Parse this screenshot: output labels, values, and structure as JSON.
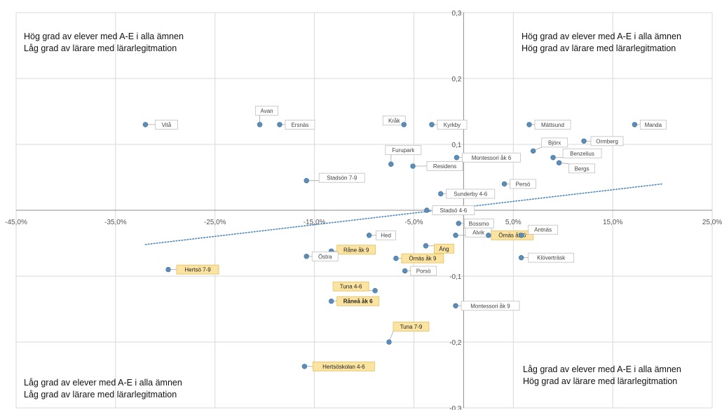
{
  "quadrants": {
    "top_left": [
      "Hög grad av elever med A-E i alla ämnen",
      "Låg grad av lärare med lärarlegitmation"
    ],
    "top_right": [
      "Hög grad av elever med A-E i alla ämnen",
      "Hög grad av lärare med lärarlegitmation"
    ],
    "bottom_left": [
      "Låg grad av elever med A-E i alla ämnen",
      "Låg grad av lärare med lärarlegitmation"
    ],
    "bottom_right": [
      "Låg grad av elever med A-E i alla ämnen",
      "Hög grad av lärare med lärarlegitmation"
    ]
  },
  "colors": {
    "point": "#5b8db8",
    "trendline": "#4a86c0",
    "grid": "#d9d9d9",
    "axis": "#8c8c8c",
    "label_border": "#bfbfbf",
    "highlight_fill": "#fbe3a1",
    "highlight_border": "#e0c060"
  },
  "chart_data": {
    "type": "scatter",
    "xlim": [
      -0.45,
      0.25
    ],
    "ylim": [
      -0.3,
      0.3
    ],
    "x_tick_values": [
      -0.45,
      -0.35,
      -0.25,
      -0.15,
      -0.05,
      0.05,
      0.15,
      0.25
    ],
    "x_tick_labels": [
      "-45,0%",
      "-35,0%",
      "-25,0%",
      "-15,0%",
      "-5,0%",
      "5,0%",
      "15,0%",
      "25,0%"
    ],
    "y_tick_values": [
      0.3,
      0.2,
      0.1,
      -0.1,
      -0.2,
      -0.3
    ],
    "y_tick_labels": [
      "0,3",
      "0,2",
      "0,1",
      "-0,1",
      "-0,2",
      "-0,3"
    ],
    "grid": true,
    "trendline": {
      "style": "dotted",
      "from": [
        -0.32,
        -0.052
      ],
      "to": [
        0.2,
        0.04
      ]
    },
    "points": [
      {
        "label": "Vitå",
        "x": -0.32,
        "y": 0.13
      },
      {
        "label": "Avan",
        "x": -0.205,
        "y": 0.13
      },
      {
        "label": "Ersnäs",
        "x": -0.185,
        "y": 0.13
      },
      {
        "label": "Kråk",
        "x": -0.06,
        "y": 0.13
      },
      {
        "label": "Kyrkby",
        "x": -0.032,
        "y": 0.13
      },
      {
        "label": "Mättsund",
        "x": 0.066,
        "y": 0.13
      },
      {
        "label": "Manda",
        "x": 0.172,
        "y": 0.13
      },
      {
        "label": "Ormberg",
        "x": 0.121,
        "y": 0.105
      },
      {
        "label": "Björx",
        "x": 0.07,
        "y": 0.09
      },
      {
        "label": "Benzelius",
        "x": 0.09,
        "y": 0.08
      },
      {
        "label": "Bergs",
        "x": 0.096,
        "y": 0.072
      },
      {
        "label": "Montessori åk 6",
        "x": -0.007,
        "y": 0.08
      },
      {
        "label": "Furupark",
        "x": -0.073,
        "y": 0.07
      },
      {
        "label": "Residens",
        "x": -0.051,
        "y": 0.067
      },
      {
        "label": "Stadsön 7-9",
        "x": -0.158,
        "y": 0.045
      },
      {
        "label": "Persö",
        "x": 0.041,
        "y": 0.04
      },
      {
        "label": "Sunderby 4-6",
        "x": -0.023,
        "y": 0.025
      },
      {
        "label": "Stadsö 4-6",
        "x": -0.037,
        "y": 0.0
      },
      {
        "label": "Bossmo",
        "x": -0.005,
        "y": -0.02
      },
      {
        "label": "Alvik",
        "x": -0.008,
        "y": -0.038
      },
      {
        "label": "Örnäs åk 6",
        "x": 0.025,
        "y": -0.038
      },
      {
        "label": "Antnäs",
        "x": 0.058,
        "y": -0.038
      },
      {
        "label": "Hed",
        "x": -0.095,
        "y": -0.038
      },
      {
        "label": "Råne åk 9",
        "x": -0.133,
        "y": -0.062
      },
      {
        "label": "Äng",
        "x": -0.038,
        "y": -0.054
      },
      {
        "label": "Örnäs åk 9",
        "x": -0.068,
        "y": -0.073
      },
      {
        "label": "Östra",
        "x": -0.158,
        "y": -0.07
      },
      {
        "label": "Klöverträsk",
        "x": 0.058,
        "y": -0.072
      },
      {
        "label": "Hertsö 7-9",
        "x": -0.297,
        "y": -0.09
      },
      {
        "label": "Porsö",
        "x": -0.059,
        "y": -0.092
      },
      {
        "label": "Tuna 4-6",
        "x": -0.089,
        "y": -0.122
      },
      {
        "label": "Råneå åk 6",
        "x": -0.133,
        "y": -0.138
      },
      {
        "label": "Montessori åk 9",
        "x": -0.008,
        "y": -0.145
      },
      {
        "label": "Tuna 7-9",
        "x": -0.075,
        "y": -0.2
      },
      {
        "label": "Hertsöskolan 4-6",
        "x": -0.16,
        "y": -0.237
      }
    ]
  },
  "label_styles": {
    "Råne åk 9": "highlight",
    "Örnäs åk 6": "highlight",
    "Äng": "highlight",
    "Örnäs åk 9": "highlight",
    "Hertsö 7-9": "highlight",
    "Tuna 4-6": "highlight",
    "Råneå åk 6": "highlight-bold",
    "Tuna 7-9": "highlight",
    "Hertsöskolan 4-6": "highlight"
  }
}
